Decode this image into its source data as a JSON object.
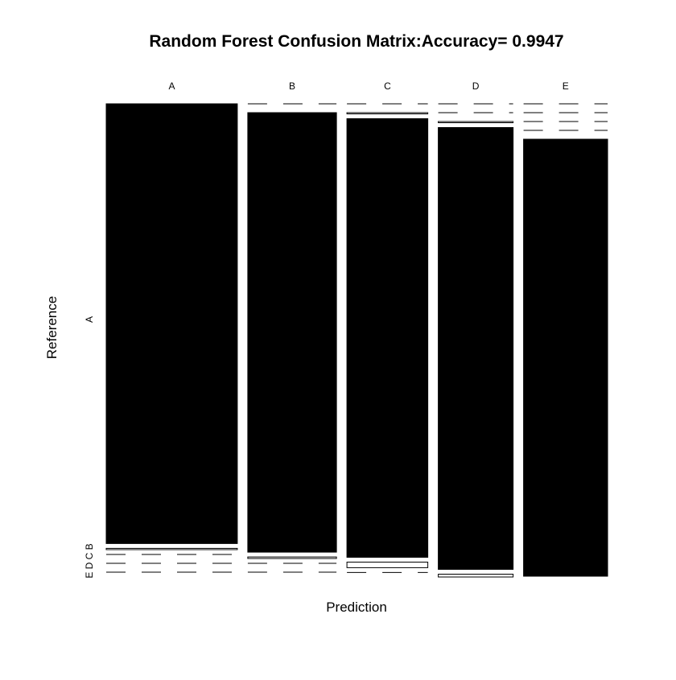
{
  "chart_data": {
    "type": "mosaic",
    "title": "Random Forest Confusion Matrix:Accuracy= 0.9947",
    "xlabel": "Prediction",
    "ylabel": "Reference",
    "x_categories": [
      "A",
      "B",
      "C",
      "D",
      "E"
    ],
    "y_categories": [
      "A",
      "B",
      "C",
      "D",
      "E"
    ],
    "y_tick_labels": {
      "top": "A",
      "bottom": "E D C B"
    },
    "colors": {
      "diagonal": "#000000",
      "off_diagonal": "#ffffff",
      "stroke": "#000000"
    },
    "matrix_rows_reference_cols_prediction": [
      [
        1674,
        0,
        0,
        0,
        0
      ],
      [
        5,
        1132,
        2,
        0,
        0
      ],
      [
        0,
        4,
        1021,
        1,
        0
      ],
      [
        0,
        0,
        13,
        951,
        0
      ],
      [
        0,
        0,
        0,
        6,
        1076
      ]
    ]
  }
}
